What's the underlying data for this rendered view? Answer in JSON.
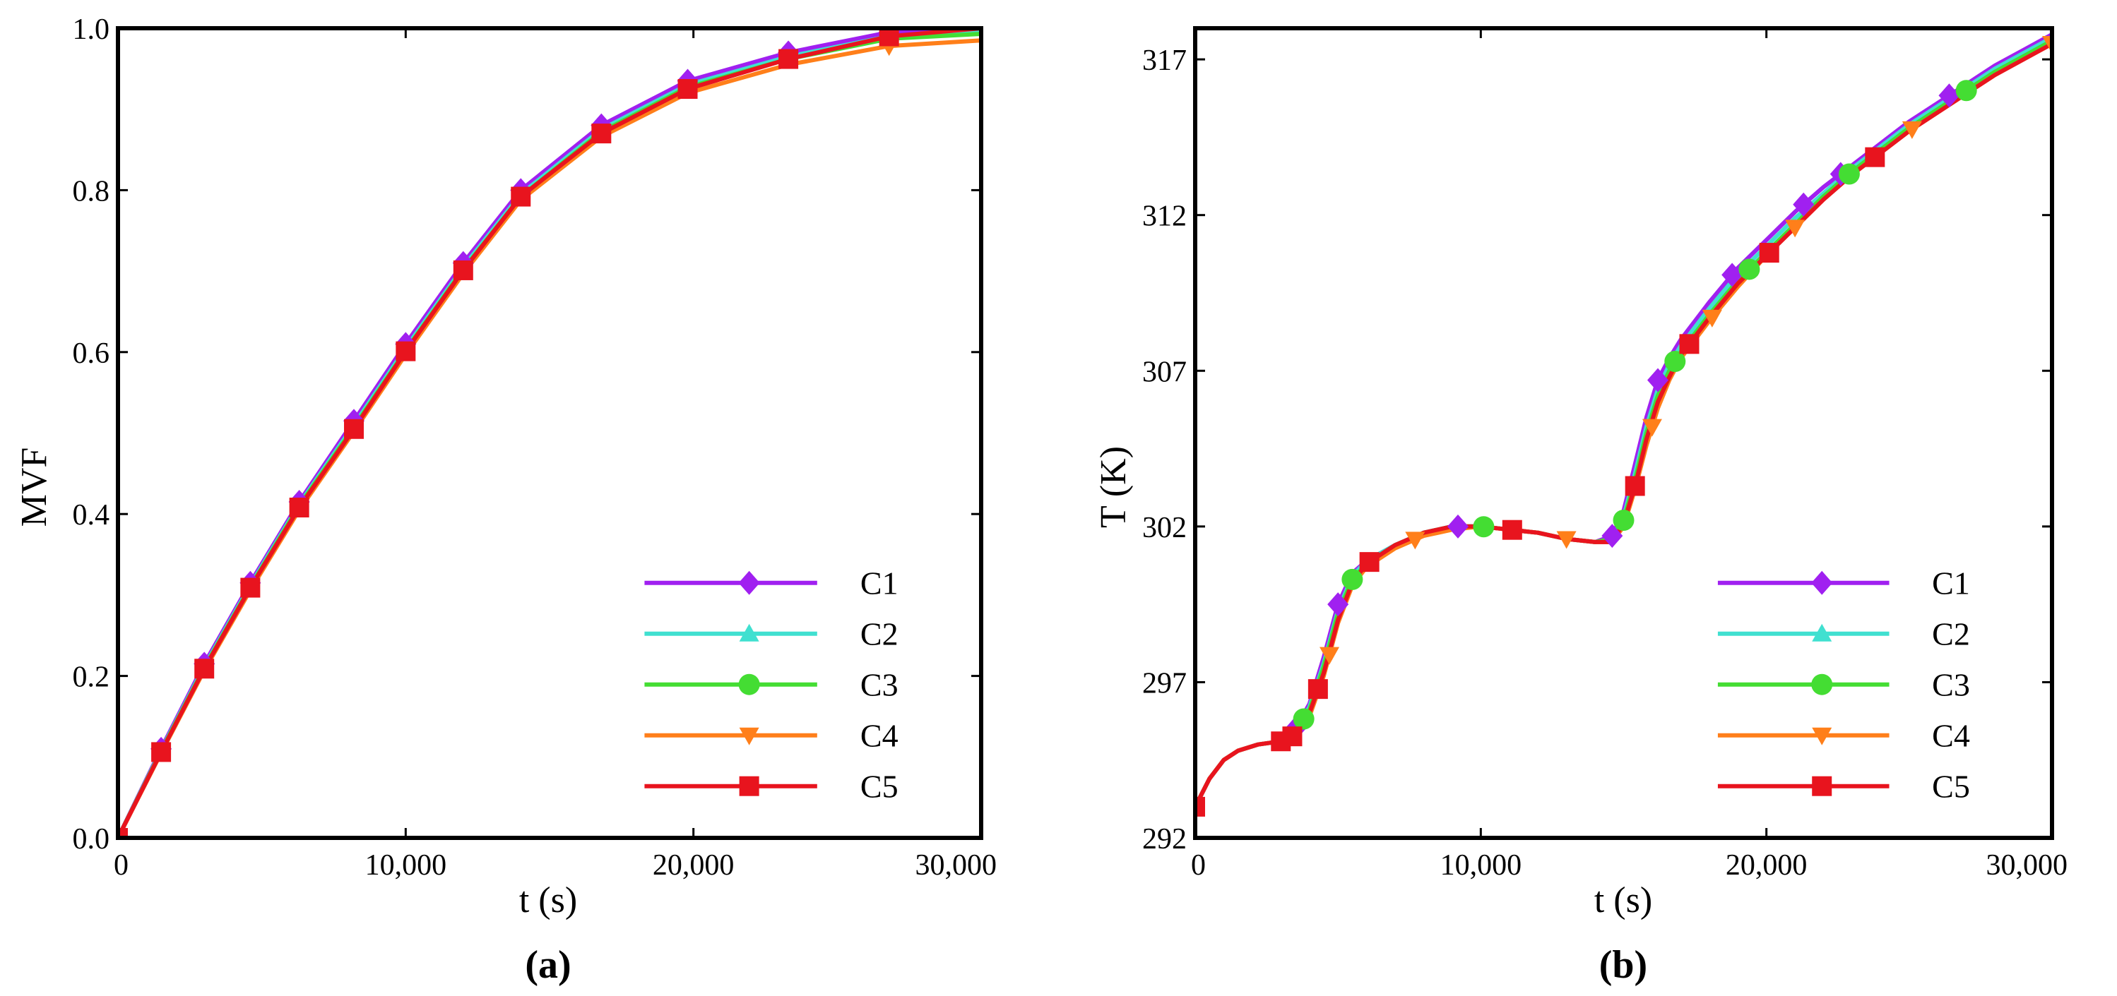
{
  "chart_data": [
    {
      "panel": "(a)",
      "type": "line",
      "xlabel": "t (s)",
      "ylabel": "MVF",
      "xlim": [
        0,
        30000
      ],
      "ylim": [
        0,
        1.0
      ],
      "xticks": [
        0,
        10000,
        20000,
        30000
      ],
      "xtick_labels": [
        "0",
        "10,000",
        "20,000",
        "30,000"
      ],
      "yticks": [
        0,
        0.2,
        0.4,
        0.6,
        0.8,
        1.0
      ],
      "ytick_labels": [
        "0.0",
        "0.2",
        "0.4",
        "0.6",
        "0.8",
        "1.0"
      ],
      "legend_position": "bottom-right",
      "series": [
        {
          "name": "C1",
          "color": "#a020f0",
          "marker": "diamond",
          "x": [
            0,
            1500,
            3000,
            4600,
            6300,
            8200,
            10000,
            12000,
            14000,
            16800,
            19800,
            23300,
            26800,
            30000
          ],
          "y": [
            0,
            0.11,
            0.215,
            0.315,
            0.415,
            0.515,
            0.61,
            0.71,
            0.8,
            0.88,
            0.935,
            0.97,
            0.995,
            1.0
          ],
          "marker_x": [
            0,
            1500,
            3000,
            4600,
            6300,
            8200,
            10000,
            12000,
            14000,
            16800,
            19800,
            23300,
            26800
          ]
        },
        {
          "name": "C2",
          "color": "#40e0d0",
          "marker": "triangle-up",
          "x": [
            0,
            1500,
            3000,
            4600,
            6300,
            8200,
            10000,
            12000,
            14000,
            16800,
            19800,
            23300,
            26800,
            30000
          ],
          "y": [
            0,
            0.108,
            0.212,
            0.312,
            0.412,
            0.51,
            0.605,
            0.705,
            0.795,
            0.875,
            0.93,
            0.965,
            0.99,
            0.995
          ],
          "marker_x": []
        },
        {
          "name": "C3",
          "color": "#44dd33",
          "marker": "circle",
          "x": [
            0,
            1500,
            3000,
            4600,
            6300,
            8200,
            10000,
            12000,
            14000,
            16800,
            19800,
            23300,
            26800,
            30000
          ],
          "y": [
            0,
            0.107,
            0.21,
            0.31,
            0.41,
            0.507,
            0.602,
            0.702,
            0.792,
            0.872,
            0.927,
            0.962,
            0.987,
            0.993
          ],
          "marker_x": []
        },
        {
          "name": "C4",
          "color": "#ff7f1a",
          "marker": "triangle-down",
          "x": [
            0,
            1500,
            3000,
            4600,
            6300,
            8200,
            10000,
            12000,
            14000,
            16800,
            19800,
            23300,
            26800,
            30000
          ],
          "y": [
            0,
            0.105,
            0.207,
            0.306,
            0.405,
            0.502,
            0.597,
            0.697,
            0.788,
            0.866,
            0.92,
            0.955,
            0.978,
            0.985
          ],
          "marker_x": [
            26800
          ]
        },
        {
          "name": "C5",
          "color": "#e8141e",
          "marker": "square",
          "x": [
            0,
            1500,
            3000,
            4600,
            6300,
            8200,
            10000,
            12000,
            14000,
            16800,
            19800,
            23300,
            26800,
            30000
          ],
          "y": [
            0,
            0.106,
            0.209,
            0.309,
            0.408,
            0.505,
            0.601,
            0.701,
            0.792,
            0.87,
            0.925,
            0.962,
            0.99,
            1.0
          ],
          "marker_x": [
            0,
            1500,
            3000,
            4600,
            6300,
            8200,
            10000,
            12000,
            14000,
            16800,
            19800,
            23300,
            26800
          ]
        }
      ]
    },
    {
      "panel": "(b)",
      "type": "line",
      "xlabel": "t (s)",
      "ylabel": "T (K)",
      "xlim": [
        0,
        30000
      ],
      "ylim": [
        292,
        318
      ],
      "xticks": [
        0,
        10000,
        20000,
        30000
      ],
      "xtick_labels": [
        "0",
        "10,000",
        "20,000",
        "30,000"
      ],
      "yticks": [
        292,
        297,
        302,
        307,
        312,
        317
      ],
      "ytick_labels": [
        "292",
        "297",
        "302",
        "307",
        "312",
        "317"
      ],
      "legend_position": "bottom-right",
      "series": [
        {
          "name": "C1",
          "color": "#a020f0",
          "marker": "diamond",
          "x": [
            0,
            500,
            1000,
            1500,
            2200,
            3000,
            3500,
            4000,
            4500,
            5000,
            5500,
            6000,
            7000,
            8000,
            9000,
            10000,
            11000,
            12000,
            13000,
            14000,
            14600,
            15000,
            15400,
            15800,
            16200,
            16600,
            17000,
            18000,
            19000,
            20000,
            21000,
            22000,
            23000,
            24000,
            25000,
            26000,
            27000,
            28000,
            29000,
            30000
          ],
          "y": [
            293.0,
            293.9,
            294.5,
            294.8,
            295.0,
            295.1,
            295.5,
            296.3,
            297.8,
            299.5,
            300.5,
            300.9,
            301.4,
            301.8,
            302.0,
            302.0,
            301.9,
            301.8,
            301.6,
            301.5,
            301.7,
            302.5,
            304.0,
            305.5,
            306.7,
            307.4,
            308.0,
            309.2,
            310.3,
            311.2,
            312.1,
            312.9,
            313.6,
            314.3,
            315.0,
            315.6,
            316.2,
            316.8,
            317.3,
            317.8
          ],
          "marker_x": [
            3500,
            5000,
            9200,
            14600,
            16200,
            18800,
            21300,
            22600,
            26400
          ]
        },
        {
          "name": "C2",
          "color": "#40e0d0",
          "marker": "triangle-up",
          "x": [
            0,
            500,
            1000,
            1500,
            2200,
            3000,
            3500,
            4000,
            4500,
            5000,
            5500,
            6000,
            7000,
            8000,
            9000,
            10000,
            11000,
            12000,
            13000,
            14000,
            14600,
            15000,
            15400,
            15800,
            16200,
            16600,
            17000,
            18000,
            19000,
            20000,
            21000,
            22000,
            23000,
            24000,
            25000,
            26000,
            27000,
            28000,
            29000,
            30000
          ],
          "y": [
            293.0,
            293.9,
            294.5,
            294.8,
            295.0,
            295.1,
            295.4,
            296.2,
            297.6,
            299.3,
            300.4,
            300.9,
            301.4,
            301.8,
            302.0,
            302.0,
            301.9,
            301.8,
            301.6,
            301.5,
            301.6,
            302.3,
            303.7,
            305.2,
            306.4,
            307.2,
            307.8,
            309.0,
            310.1,
            311.0,
            311.9,
            312.7,
            313.5,
            314.2,
            314.9,
            315.5,
            316.1,
            316.7,
            317.2,
            317.7
          ],
          "marker_x": []
        },
        {
          "name": "C3",
          "color": "#44dd33",
          "marker": "circle",
          "x": [
            0,
            500,
            1000,
            1500,
            2200,
            3000,
            3500,
            4000,
            4500,
            5000,
            5500,
            6000,
            7000,
            8000,
            9000,
            10000,
            11000,
            12000,
            13000,
            14000,
            14600,
            15000,
            15400,
            15800,
            16200,
            16600,
            17000,
            18000,
            19000,
            20000,
            21000,
            22000,
            23000,
            24000,
            25000,
            26000,
            27000,
            28000,
            29000,
            30000
          ],
          "y": [
            293.0,
            293.9,
            294.5,
            294.8,
            295.0,
            295.1,
            295.4,
            296.1,
            297.5,
            299.2,
            300.3,
            300.8,
            301.4,
            301.8,
            302.0,
            302.0,
            301.9,
            301.8,
            301.6,
            301.5,
            301.6,
            302.2,
            303.5,
            305.0,
            306.2,
            307.0,
            307.6,
            308.8,
            309.9,
            310.8,
            311.7,
            312.6,
            313.4,
            314.1,
            314.8,
            315.4,
            316.0,
            316.6,
            317.1,
            317.6
          ],
          "marker_x": [
            3800,
            5500,
            10100,
            15000,
            16800,
            19400,
            22900,
            27000
          ]
        },
        {
          "name": "C4",
          "color": "#ff7f1a",
          "marker": "triangle-down",
          "x": [
            0,
            500,
            1000,
            1500,
            2200,
            3000,
            3500,
            4000,
            4500,
            5000,
            5500,
            6000,
            7000,
            8000,
            9000,
            10000,
            11000,
            12000,
            13000,
            14000,
            14600,
            15000,
            15400,
            15800,
            16200,
            16600,
            17000,
            18000,
            19000,
            20000,
            21000,
            22000,
            23000,
            24000,
            25000,
            26000,
            27000,
            28000,
            29000,
            30000
          ],
          "y": [
            293.0,
            293.9,
            294.5,
            294.8,
            295.0,
            295.1,
            295.3,
            295.9,
            297.2,
            298.9,
            300.1,
            300.7,
            301.3,
            301.7,
            301.9,
            302.0,
            301.9,
            301.8,
            301.6,
            301.5,
            301.5,
            302.0,
            303.2,
            304.6,
            305.8,
            306.7,
            307.4,
            308.6,
            309.7,
            310.7,
            311.6,
            312.5,
            313.3,
            314.0,
            314.7,
            315.3,
            315.9,
            316.5,
            317.0,
            317.5
          ],
          "marker_x": [
            4700,
            7700,
            13000,
            16000,
            18100,
            21000,
            25100,
            30000
          ]
        },
        {
          "name": "C5",
          "color": "#e8141e",
          "marker": "square",
          "x": [
            0,
            500,
            1000,
            1500,
            2200,
            3000,
            3500,
            4000,
            4500,
            5000,
            5500,
            6000,
            7000,
            8000,
            9000,
            10000,
            11000,
            12000,
            13000,
            14000,
            14600,
            15000,
            15400,
            15800,
            16200,
            16600,
            17000,
            18000,
            19000,
            20000,
            21000,
            22000,
            23000,
            24000,
            25000,
            26000,
            27000,
            28000,
            29000,
            30000
          ],
          "y": [
            293.0,
            293.9,
            294.5,
            294.8,
            295.0,
            295.1,
            295.3,
            296.0,
            297.3,
            299.0,
            300.2,
            300.8,
            301.4,
            301.8,
            302.0,
            302.0,
            301.9,
            301.8,
            301.6,
            301.5,
            301.5,
            302.1,
            303.3,
            304.8,
            306.0,
            306.8,
            307.5,
            308.7,
            309.8,
            310.7,
            311.6,
            312.5,
            313.3,
            314.0,
            314.7,
            315.3,
            315.9,
            316.5,
            317.0,
            317.5
          ],
          "marker_x": [
            0,
            3000,
            3400,
            4300,
            6100,
            11100,
            15400,
            17300,
            20100,
            23800
          ]
        }
      ]
    }
  ]
}
